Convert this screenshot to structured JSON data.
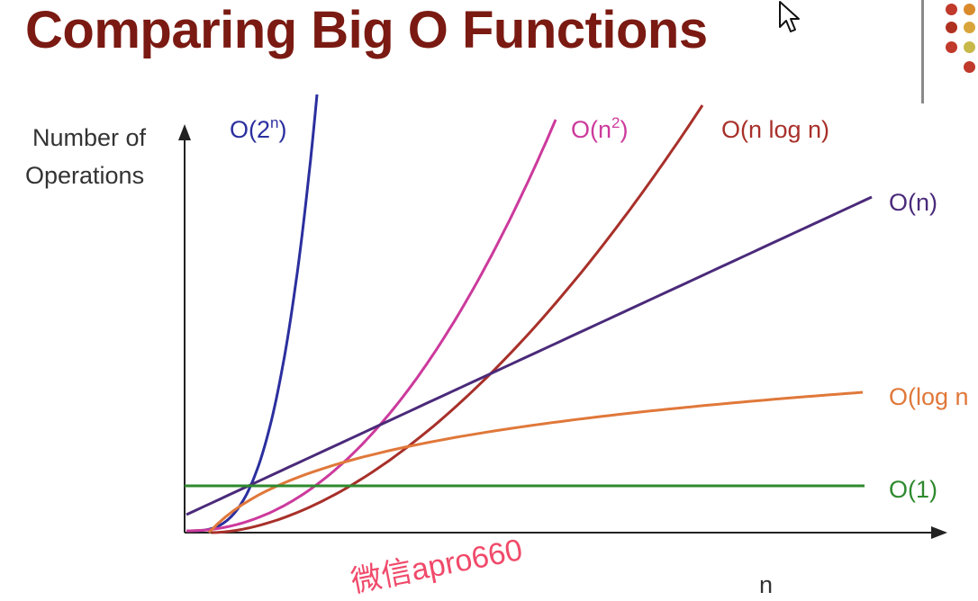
{
  "header": {
    "title": "Comparing Big O Functions"
  },
  "watermark": {
    "text": "微信apro660"
  },
  "chart_data": {
    "type": "line",
    "title": "Comparing Big O Functions",
    "ylabel_line1": "Number of",
    "ylabel_line2": "Operations",
    "xlabel": "n",
    "grid": false,
    "legend": "inline labels at the end of each curve",
    "series": [
      {
        "name": "O(2ⁿ)",
        "label_base": "O(2",
        "label_sup": "n",
        "label_close": ")",
        "color": "#2b2f9e",
        "function": "exponential"
      },
      {
        "name": "O(n²)",
        "label_base": "O(n",
        "label_sup": "2",
        "label_close": ")",
        "color": "#cc3a9c",
        "function": "quadratic"
      },
      {
        "name": "O(n log n)",
        "label_base": "O(n log n)",
        "label_sup": "",
        "label_close": "",
        "color": "#a8302a",
        "function": "n log n"
      },
      {
        "name": "O(n)",
        "label_base": "O(n)",
        "label_sup": "",
        "label_close": "",
        "color": "#4a2a7a",
        "function": "linear"
      },
      {
        "name": "O(log n)",
        "label_base": "O(log n",
        "label_sup": "",
        "label_close": "",
        "color": "#e0783a",
        "function": "logarithmic"
      },
      {
        "name": "O(1)",
        "label_base": "O(1)",
        "label_sup": "",
        "label_close": "",
        "color": "#2e8a2e",
        "function": "constant"
      }
    ]
  },
  "colors": {
    "title": "#7a1a12",
    "axis": "#222222",
    "divider": "#8a8a8a",
    "watermark": "#f04a6a"
  },
  "decor": {
    "dot_colors": [
      "#c0392b",
      "#d98a2b",
      "#b03020",
      "#d9a53a",
      "#c0392b",
      "#c8b84a"
    ],
    "cursor_icon": "mouse-pointer-icon"
  }
}
